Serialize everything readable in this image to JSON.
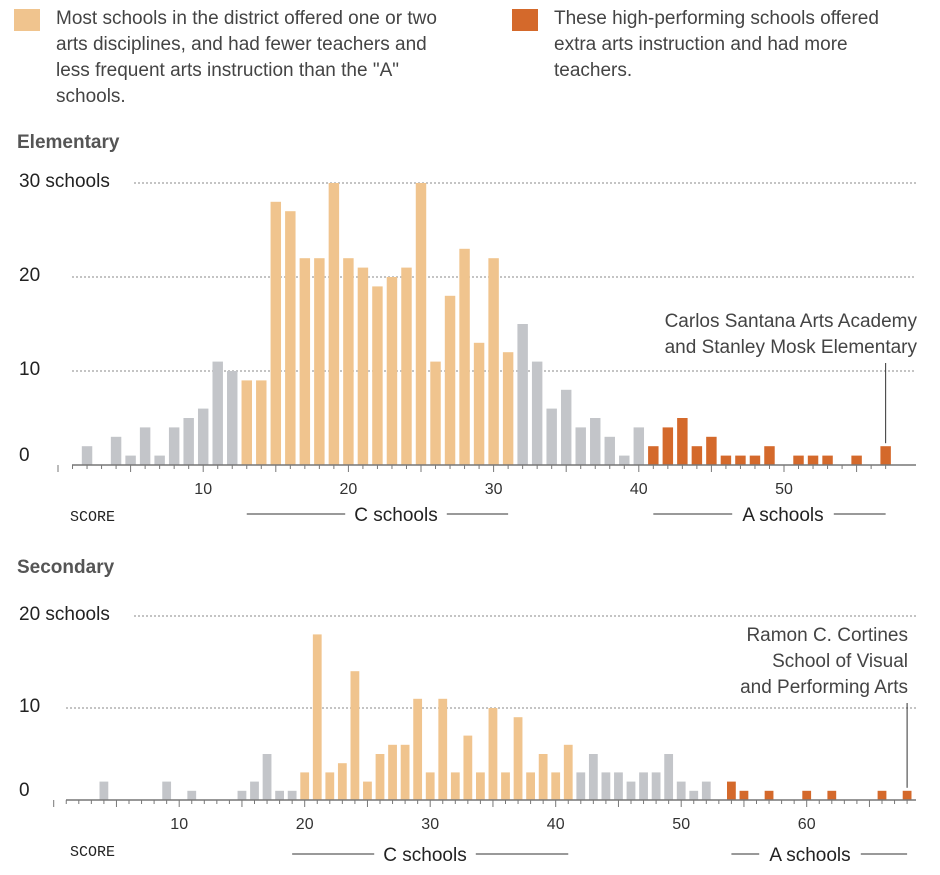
{
  "legend": {
    "c_text": "Most schools in the district offered one or two arts disciplines, and had fewer teachers and less frequent arts instruction than the \"A\" schools.",
    "a_text": "These high-performing schools offered extra arts instruction and had more teachers."
  },
  "colors": {
    "c": "#f0c48e",
    "a": "#d4692b",
    "other": "#c3c5c9"
  },
  "chart_data": [
    {
      "type": "bar",
      "title": "Elementary",
      "xlabel": "SCORE",
      "y_tick_labels": [
        "0",
        "10",
        "20",
        "30 schools"
      ],
      "y_ticks": [
        0,
        10,
        20,
        30
      ],
      "ylim": [
        0,
        30
      ],
      "xlim": [
        0,
        57
      ],
      "x_ticks": [
        10,
        20,
        30,
        40,
        50
      ],
      "c_range": [
        13,
        31
      ],
      "a_range": [
        41,
        57
      ],
      "c_label": "C schools",
      "a_label": "A schools",
      "annotation": [
        "Carlos Santana Arts Academy",
        "and Stanley Mosk Elementary"
      ],
      "annotation_x": 57,
      "x": [
        2,
        3,
        4,
        5,
        6,
        7,
        8,
        9,
        10,
        11,
        12,
        13,
        14,
        15,
        16,
        17,
        18,
        19,
        20,
        21,
        22,
        23,
        24,
        25,
        26,
        27,
        28,
        29,
        30,
        31,
        32,
        33,
        34,
        35,
        36,
        37,
        38,
        39,
        40,
        41,
        42,
        43,
        44,
        45,
        46,
        47,
        48,
        49,
        50,
        51,
        52,
        53,
        54,
        55,
        56,
        57
      ],
      "values": [
        2,
        0,
        3,
        1,
        4,
        1,
        4,
        5,
        6,
        11,
        10,
        9,
        9,
        28,
        27,
        22,
        22,
        30,
        22,
        21,
        19,
        20,
        21,
        30,
        11,
        18,
        23,
        13,
        22,
        12,
        15,
        11,
        6,
        8,
        4,
        5,
        3,
        1,
        4,
        2,
        4,
        5,
        2,
        3,
        1,
        1,
        1,
        2,
        0,
        1,
        1,
        1,
        0,
        1,
        0,
        2
      ],
      "groups": [
        "o",
        "o",
        "o",
        "o",
        "o",
        "o",
        "o",
        "o",
        "o",
        "o",
        "o",
        "c",
        "c",
        "c",
        "c",
        "c",
        "c",
        "c",
        "c",
        "c",
        "c",
        "c",
        "c",
        "c",
        "c",
        "c",
        "c",
        "c",
        "c",
        "c",
        "o",
        "o",
        "o",
        "o",
        "o",
        "o",
        "o",
        "o",
        "o",
        "a",
        "a",
        "a",
        "a",
        "a",
        "a",
        "a",
        "a",
        "a",
        "a",
        "a",
        "a",
        "a",
        "a",
        "a",
        "a",
        "a"
      ]
    },
    {
      "type": "bar",
      "title": "Secondary",
      "xlabel": "SCORE",
      "y_tick_labels": [
        "0",
        "10",
        "20 schools"
      ],
      "y_ticks": [
        0,
        10,
        20
      ],
      "ylim": [
        0,
        20
      ],
      "xlim": [
        0,
        68
      ],
      "x_ticks": [
        10,
        20,
        30,
        40,
        50,
        60
      ],
      "c_range": [
        19,
        41
      ],
      "a_range": [
        54,
        68
      ],
      "c_label": "C schools",
      "a_label": "A schools",
      "annotation": [
        "Ramon C. Cortines",
        "School of Visual",
        "and Performing Arts"
      ],
      "annotation_x": 68,
      "x": [
        1,
        2,
        3,
        4,
        5,
        6,
        7,
        8,
        9,
        10,
        11,
        12,
        13,
        14,
        15,
        16,
        17,
        18,
        19,
        20,
        21,
        22,
        23,
        24,
        25,
        26,
        27,
        28,
        29,
        30,
        31,
        32,
        33,
        34,
        35,
        36,
        37,
        38,
        39,
        40,
        41,
        42,
        43,
        44,
        45,
        46,
        47,
        48,
        49,
        50,
        51,
        52,
        53,
        54,
        55,
        56,
        57,
        58,
        59,
        60,
        61,
        62,
        63,
        64,
        65,
        66,
        67,
        68
      ],
      "values": [
        0,
        0,
        0,
        2,
        0,
        0,
        0,
        0,
        2,
        0,
        1,
        0,
        0,
        0,
        1,
        2,
        5,
        1,
        1,
        3,
        18,
        3,
        4,
        14,
        2,
        5,
        6,
        6,
        11,
        3,
        11,
        3,
        7,
        3,
        10,
        3,
        9,
        3,
        5,
        3,
        6,
        3,
        5,
        3,
        3,
        2,
        3,
        3,
        5,
        2,
        1,
        2,
        0,
        2,
        1,
        0,
        1,
        0,
        0,
        1,
        0,
        1,
        0,
        0,
        0,
        1,
        0,
        1
      ],
      "groups": [
        "o",
        "o",
        "o",
        "o",
        "o",
        "o",
        "o",
        "o",
        "o",
        "o",
        "o",
        "o",
        "o",
        "o",
        "o",
        "o",
        "o",
        "o",
        "o",
        "c",
        "c",
        "c",
        "c",
        "c",
        "c",
        "c",
        "c",
        "c",
        "c",
        "c",
        "c",
        "c",
        "c",
        "c",
        "c",
        "c",
        "c",
        "c",
        "c",
        "c",
        "c",
        "o",
        "o",
        "o",
        "o",
        "o",
        "o",
        "o",
        "o",
        "o",
        "o",
        "o",
        "o",
        "a",
        "a",
        "a",
        "a",
        "a",
        "a",
        "a",
        "a",
        "a",
        "a",
        "a",
        "a",
        "a",
        "a",
        "a"
      ]
    }
  ]
}
